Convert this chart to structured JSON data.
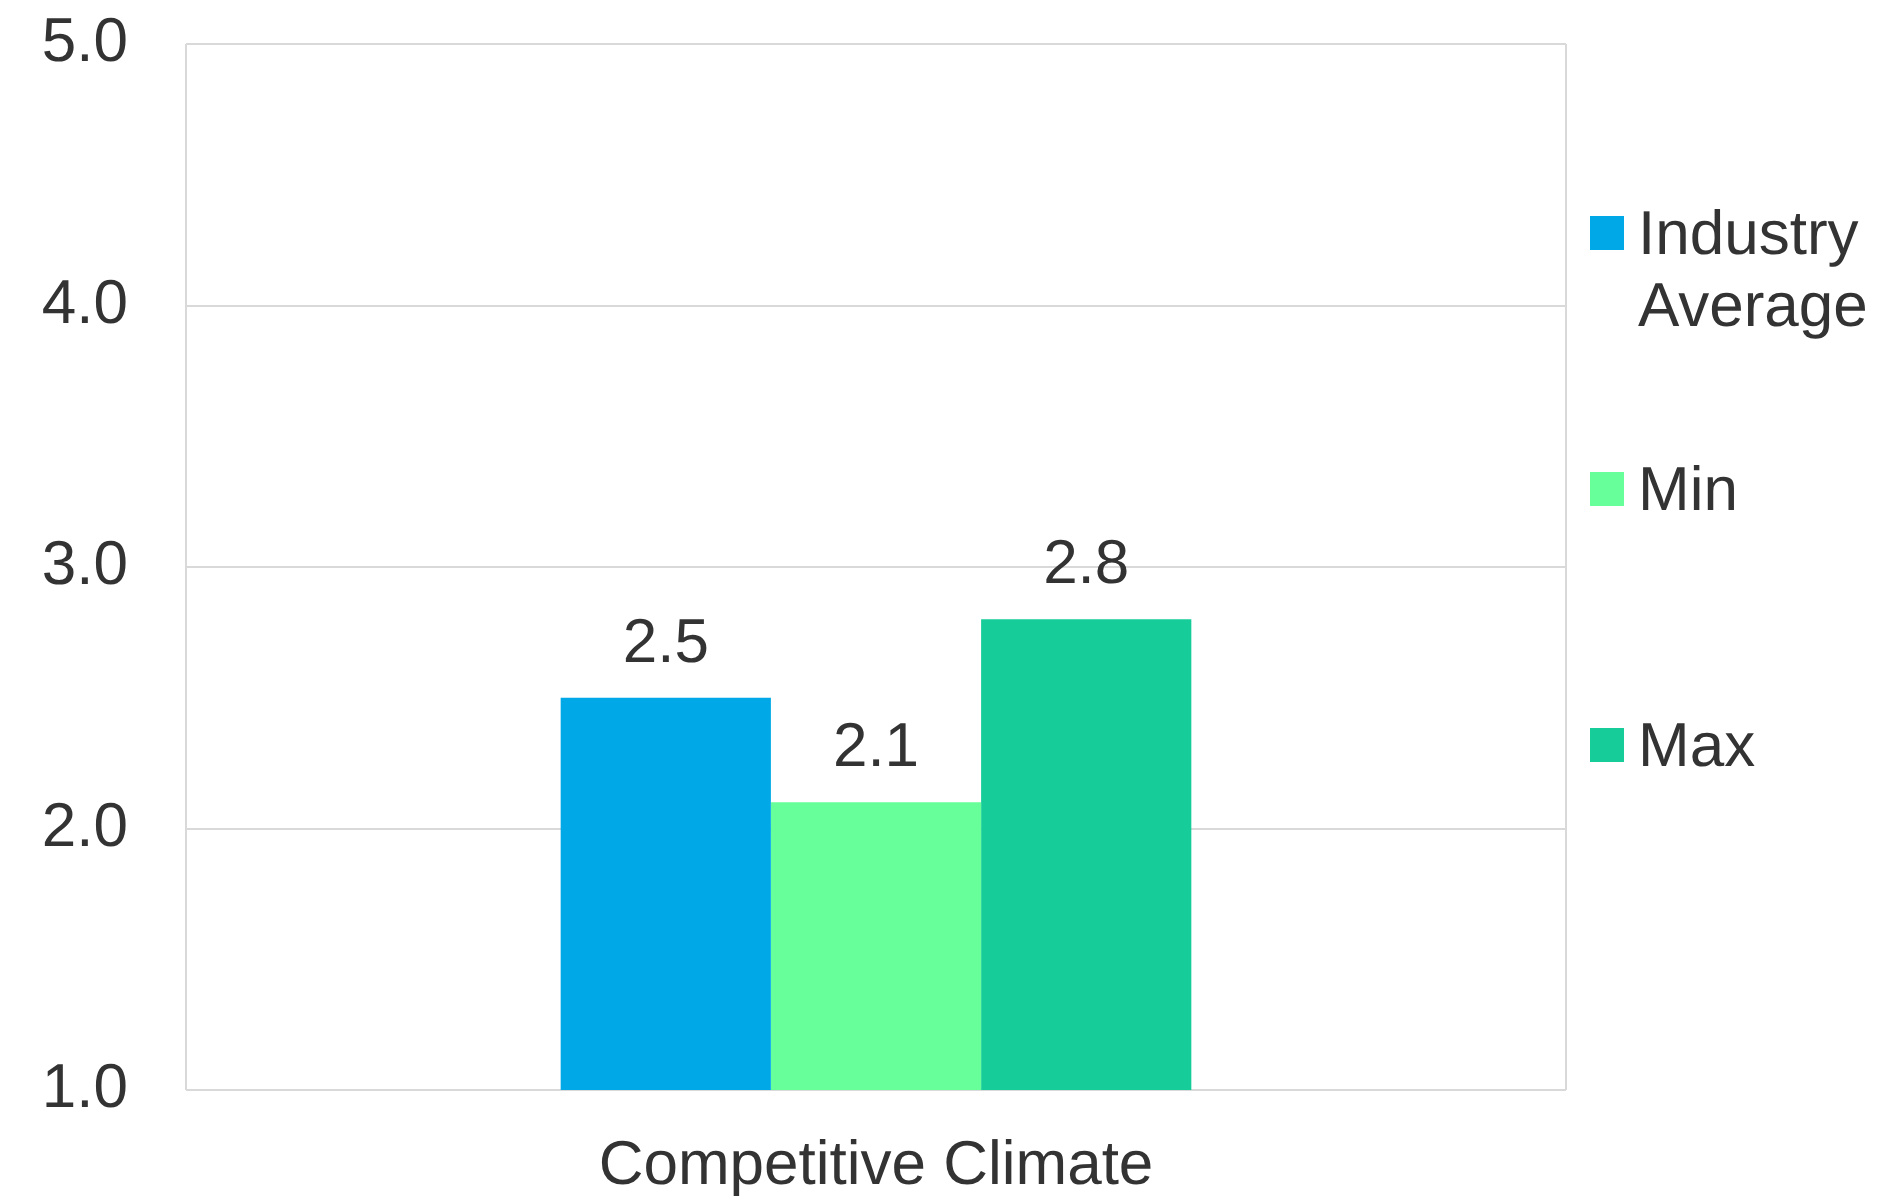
{
  "chart_data": {
    "type": "bar",
    "categories": [
      "Competitive Climate"
    ],
    "series": [
      {
        "name": "Industry Average",
        "color": "#00a8e8",
        "values": [
          2.5
        ]
      },
      {
        "name": "Min",
        "color": "#66ff99",
        "values": [
          2.1
        ]
      },
      {
        "name": "Max",
        "color": "#16cc99",
        "values": [
          2.8
        ]
      }
    ],
    "ylim": [
      1,
      5
    ],
    "yticks": [
      {
        "value": 1,
        "label": "1.0"
      },
      {
        "value": 2,
        "label": "2.0"
      },
      {
        "value": 3,
        "label": "3.0"
      },
      {
        "value": 4,
        "label": "4.0"
      },
      {
        "value": 5,
        "label": "5.0"
      }
    ],
    "grid": "y",
    "legend": "right",
    "data_labels": true
  }
}
